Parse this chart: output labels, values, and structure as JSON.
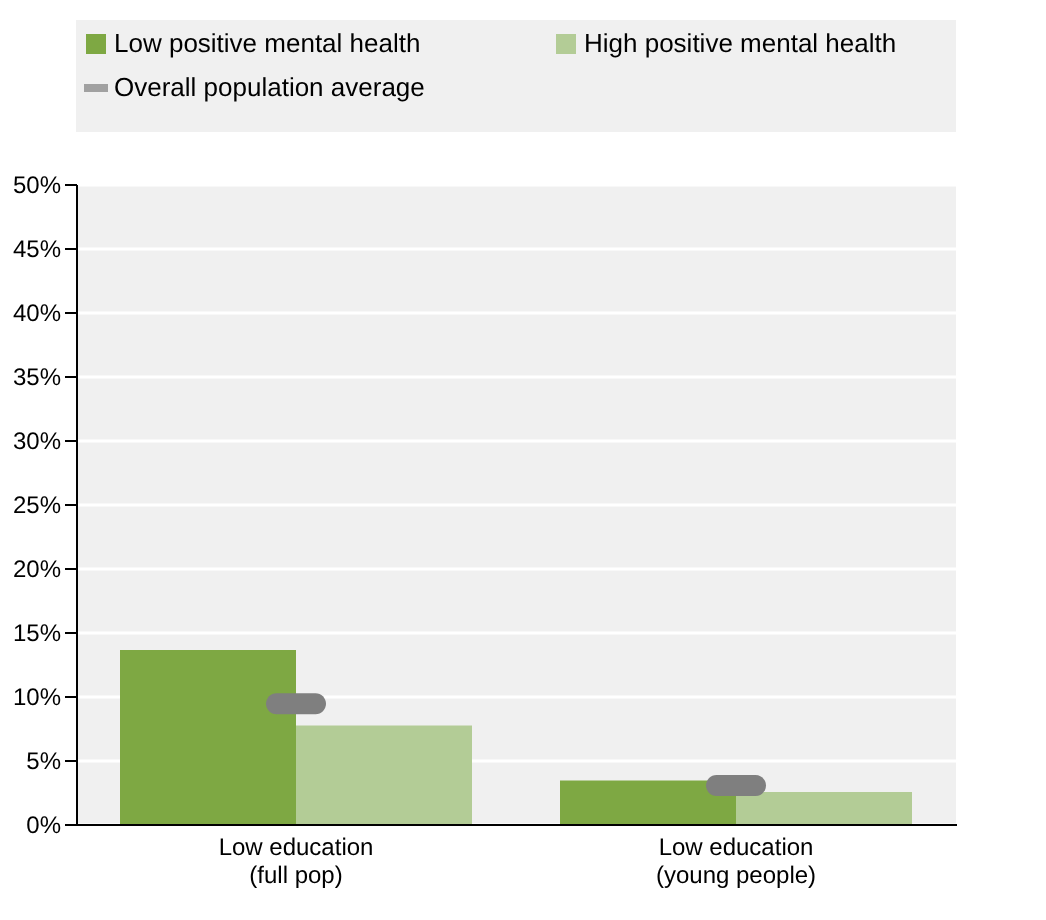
{
  "chart_data": {
    "type": "bar",
    "categories": [
      "Low education\n(full pop)",
      "Low education\n(young people)"
    ],
    "series": [
      {
        "name": "Low positive mental health",
        "color": "#7ea843",
        "values": [
          13.6,
          3.4
        ]
      },
      {
        "name": "High positive mental health",
        "color": "#b3cc96",
        "values": [
          7.7,
          2.5
        ]
      },
      {
        "name": "Overall population average",
        "color": "#7f7f7f",
        "type": "scatter",
        "values": [
          9.4,
          3.0
        ]
      }
    ],
    "ylim": [
      0,
      50
    ],
    "yticks": [
      {
        "value": 0,
        "label": "0%"
      },
      {
        "value": 5,
        "label": "5%"
      },
      {
        "value": 10,
        "label": "10%"
      },
      {
        "value": 15,
        "label": "15%"
      },
      {
        "value": 20,
        "label": "20%"
      },
      {
        "value": 25,
        "label": "25%"
      },
      {
        "value": 30,
        "label": "30%"
      },
      {
        "value": 35,
        "label": "35%"
      },
      {
        "value": 40,
        "label": "40%"
      },
      {
        "value": 45,
        "label": "45%"
      },
      {
        "value": 50,
        "label": "50%"
      }
    ],
    "grid": "y",
    "legend": "top"
  }
}
